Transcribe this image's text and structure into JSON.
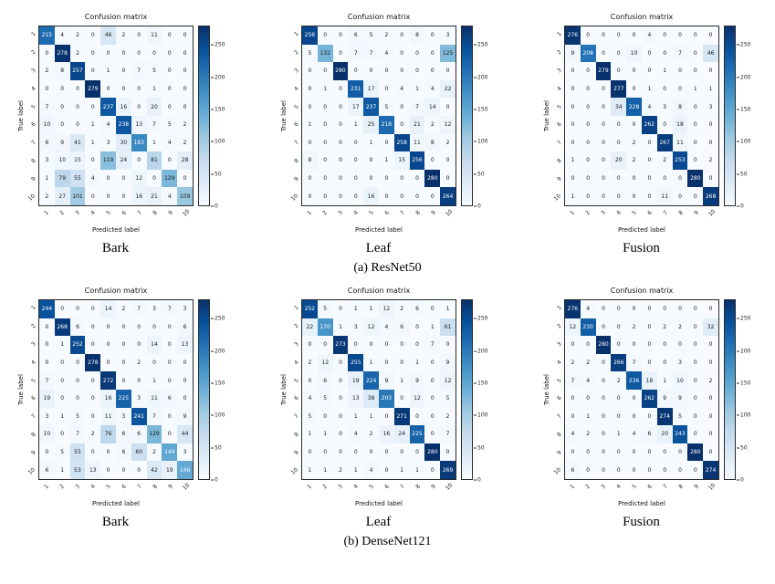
{
  "figure": {
    "rows": [
      {
        "caption": "(a) ResNet50",
        "panels": [
          {
            "label": "Bark"
          },
          {
            "label": "Leaf"
          },
          {
            "label": "Fusion"
          }
        ]
      },
      {
        "caption": "(b) DenseNet121",
        "panels": [
          {
            "label": "Bark"
          },
          {
            "label": "Leaf"
          },
          {
            "label": "Fusion"
          }
        ]
      }
    ]
  },
  "palette": {
    "cmap": "Blues",
    "cmap_low": "#f7fbff",
    "cmap_high": "#08306b",
    "spine": "#2a2a2a"
  },
  "chart_data": [
    {
      "type": "heatmap",
      "model": "ResNet50",
      "modality": "Bark",
      "title": "Confusion matrix",
      "xlabel": "Predicted label",
      "ylabel": "True label",
      "x_ticklabels": [
        "1",
        "2",
        "3",
        "4",
        "5",
        "6",
        "7",
        "8",
        "9",
        "10"
      ],
      "y_ticklabels": [
        "1",
        "2",
        "3",
        "4",
        "5",
        "6",
        "7",
        "8",
        "9",
        "10"
      ],
      "vmin": 0,
      "vmax": 280,
      "colorbar_ticks": [
        0,
        50,
        100,
        150,
        200,
        250
      ],
      "matrix": [
        [
          215,
          4,
          2,
          0,
          46,
          2,
          0,
          11,
          0,
          0
        ],
        [
          0,
          278,
          2,
          0,
          0,
          0,
          0,
          0,
          0,
          0
        ],
        [
          2,
          8,
          257,
          0,
          1,
          0,
          7,
          5,
          0,
          0
        ],
        [
          0,
          0,
          0,
          279,
          0,
          0,
          0,
          1,
          0,
          0
        ],
        [
          7,
          0,
          0,
          0,
          237,
          16,
          0,
          20,
          0,
          0
        ],
        [
          10,
          0,
          0,
          1,
          4,
          238,
          13,
          7,
          5,
          2
        ],
        [
          6,
          9,
          41,
          1,
          3,
          30,
          183,
          1,
          4,
          2
        ],
        [
          3,
          10,
          15,
          0,
          119,
          24,
          0,
          81,
          0,
          28
        ],
        [
          1,
          79,
          55,
          4,
          0,
          0,
          12,
          0,
          129,
          0
        ],
        [
          2,
          27,
          101,
          0,
          0,
          0,
          16,
          21,
          4,
          109
        ]
      ]
    },
    {
      "type": "heatmap",
      "model": "ResNet50",
      "modality": "Leaf",
      "title": "Confusion matrix",
      "xlabel": "Predicted label",
      "ylabel": "True label",
      "x_ticklabels": [
        "1",
        "2",
        "3",
        "4",
        "5",
        "6",
        "7",
        "8",
        "9",
        "10"
      ],
      "y_ticklabels": [
        "1",
        "2",
        "3",
        "4",
        "5",
        "6",
        "7",
        "8",
        "9",
        "10"
      ],
      "vmin": 0,
      "vmax": 280,
      "colorbar_ticks": [
        0,
        50,
        100,
        150,
        200,
        250
      ],
      "matrix": [
        [
          256,
          0,
          0,
          6,
          5,
          2,
          0,
          8,
          0,
          3
        ],
        [
          5,
          132,
          0,
          7,
          7,
          4,
          0,
          0,
          0,
          125
        ],
        [
          0,
          0,
          280,
          0,
          0,
          0,
          0,
          0,
          0,
          0
        ],
        [
          0,
          1,
          0,
          231,
          17,
          0,
          4,
          1,
          4,
          22
        ],
        [
          0,
          0,
          0,
          17,
          237,
          5,
          0,
          7,
          14,
          0
        ],
        [
          1,
          0,
          0,
          1,
          25,
          218,
          0,
          21,
          2,
          12
        ],
        [
          0,
          0,
          0,
          0,
          1,
          0,
          258,
          11,
          8,
          2
        ],
        [
          8,
          0,
          0,
          0,
          0,
          1,
          15,
          256,
          0,
          0
        ],
        [
          0,
          0,
          0,
          0,
          0,
          0,
          0,
          0,
          280,
          0
        ],
        [
          0,
          0,
          0,
          0,
          16,
          0,
          0,
          0,
          0,
          264
        ]
      ]
    },
    {
      "type": "heatmap",
      "model": "ResNet50",
      "modality": "Fusion",
      "title": "Confusion matrix",
      "xlabel": "Predicted label",
      "ylabel": "True label",
      "x_ticklabels": [
        "1",
        "2",
        "3",
        "4",
        "5",
        "6",
        "7",
        "8",
        "9",
        "10"
      ],
      "y_ticklabels": [
        "1",
        "2",
        "3",
        "4",
        "5",
        "6",
        "7",
        "8",
        "9",
        "10"
      ],
      "vmin": 0,
      "vmax": 280,
      "colorbar_ticks": [
        0,
        50,
        100,
        150,
        200,
        250
      ],
      "matrix": [
        [
          276,
          0,
          0,
          0,
          0,
          4,
          0,
          0,
          0,
          0
        ],
        [
          9,
          208,
          0,
          0,
          10,
          0,
          0,
          7,
          0,
          46
        ],
        [
          0,
          0,
          279,
          0,
          0,
          0,
          1,
          0,
          0,
          0
        ],
        [
          0,
          0,
          0,
          277,
          0,
          1,
          0,
          0,
          1,
          1
        ],
        [
          0,
          0,
          0,
          34,
          228,
          4,
          3,
          8,
          0,
          3
        ],
        [
          0,
          0,
          0,
          0,
          0,
          262,
          0,
          18,
          0,
          0
        ],
        [
          0,
          0,
          0,
          0,
          2,
          0,
          267,
          11,
          0,
          0
        ],
        [
          1,
          0,
          0,
          20,
          2,
          0,
          2,
          253,
          0,
          2
        ],
        [
          0,
          0,
          0,
          0,
          0,
          0,
          0,
          0,
          280,
          0
        ],
        [
          1,
          0,
          0,
          0,
          0,
          0,
          11,
          0,
          0,
          268
        ]
      ]
    },
    {
      "type": "heatmap",
      "model": "DenseNet121",
      "modality": "Bark",
      "title": "Confusion matrix",
      "xlabel": "Predicted label",
      "ylabel": "True label",
      "x_ticklabels": [
        "1",
        "2",
        "3",
        "4",
        "5",
        "6",
        "7",
        "8",
        "9",
        "10"
      ],
      "y_ticklabels": [
        "1",
        "2",
        "3",
        "4",
        "5",
        "6",
        "7",
        "8",
        "9",
        "10"
      ],
      "vmin": 0,
      "vmax": 280,
      "colorbar_ticks": [
        0,
        50,
        100,
        150,
        200,
        250
      ],
      "matrix": [
        [
          244,
          0,
          0,
          0,
          14,
          2,
          7,
          3,
          7,
          3
        ],
        [
          0,
          268,
          6,
          0,
          0,
          0,
          0,
          0,
          0,
          6
        ],
        [
          0,
          1,
          252,
          0,
          0,
          0,
          0,
          14,
          0,
          13
        ],
        [
          0,
          0,
          0,
          278,
          0,
          0,
          2,
          0,
          0,
          0
        ],
        [
          7,
          0,
          0,
          0,
          272,
          0,
          0,
          1,
          0,
          0
        ],
        [
          19,
          0,
          0,
          0,
          16,
          225,
          3,
          11,
          6,
          0
        ],
        [
          3,
          1,
          5,
          0,
          11,
          3,
          241,
          7,
          0,
          9
        ],
        [
          10,
          0,
          7,
          2,
          76,
          6,
          6,
          129,
          0,
          44
        ],
        [
          0,
          5,
          55,
          0,
          0,
          6,
          60,
          2,
          149,
          3
        ],
        [
          6,
          1,
          53,
          13,
          0,
          0,
          0,
          42,
          19,
          146
        ]
      ]
    },
    {
      "type": "heatmap",
      "model": "DenseNet121",
      "modality": "Leaf",
      "title": "Confusion matrix",
      "xlabel": "Predicted label",
      "ylabel": "True label",
      "x_ticklabels": [
        "1",
        "2",
        "3",
        "4",
        "5",
        "6",
        "7",
        "8",
        "9",
        "10"
      ],
      "y_ticklabels": [
        "1",
        "2",
        "3",
        "4",
        "5",
        "6",
        "7",
        "8",
        "9",
        "10"
      ],
      "vmin": 0,
      "vmax": 280,
      "colorbar_ticks": [
        0,
        50,
        100,
        150,
        200,
        250
      ],
      "matrix": [
        [
          252,
          5,
          0,
          1,
          1,
          12,
          2,
          6,
          0,
          1
        ],
        [
          22,
          170,
          1,
          3,
          12,
          4,
          6,
          0,
          1,
          61
        ],
        [
          0,
          0,
          273,
          0,
          0,
          0,
          0,
          0,
          7,
          0
        ],
        [
          2,
          12,
          0,
          255,
          1,
          0,
          0,
          1,
          0,
          9
        ],
        [
          0,
          6,
          0,
          19,
          224,
          9,
          1,
          9,
          0,
          12
        ],
        [
          4,
          5,
          0,
          13,
          38,
          203,
          0,
          12,
          0,
          5
        ],
        [
          5,
          0,
          0,
          1,
          1,
          0,
          271,
          0,
          0,
          2
        ],
        [
          1,
          1,
          0,
          4,
          2,
          16,
          24,
          225,
          0,
          7
        ],
        [
          0,
          0,
          0,
          0,
          0,
          0,
          0,
          0,
          280,
          0
        ],
        [
          1,
          1,
          2,
          1,
          4,
          0,
          1,
          1,
          0,
          269
        ]
      ]
    },
    {
      "type": "heatmap",
      "model": "DenseNet121",
      "modality": "Fusion",
      "title": "Confusion matrix",
      "xlabel": "Predicted label",
      "ylabel": "True label",
      "x_ticklabels": [
        "1",
        "2",
        "3",
        "4",
        "5",
        "6",
        "7",
        "8",
        "9",
        "10"
      ],
      "y_ticklabels": [
        "1",
        "2",
        "3",
        "4",
        "5",
        "6",
        "7",
        "8",
        "9",
        "10"
      ],
      "vmin": 0,
      "vmax": 280,
      "colorbar_ticks": [
        0,
        50,
        100,
        150,
        200,
        250
      ],
      "matrix": [
        [
          276,
          4,
          0,
          0,
          0,
          0,
          0,
          0,
          0,
          0
        ],
        [
          12,
          230,
          0,
          0,
          2,
          0,
          2,
          2,
          0,
          32
        ],
        [
          0,
          0,
          280,
          0,
          0,
          0,
          0,
          0,
          0,
          0
        ],
        [
          2,
          2,
          0,
          266,
          7,
          0,
          0,
          3,
          0,
          0
        ],
        [
          7,
          4,
          0,
          2,
          236,
          18,
          1,
          10,
          0,
          2
        ],
        [
          0,
          0,
          0,
          0,
          0,
          262,
          9,
          9,
          0,
          0
        ],
        [
          0,
          1,
          0,
          0,
          0,
          0,
          274,
          5,
          0,
          0
        ],
        [
          4,
          2,
          0,
          1,
          4,
          6,
          20,
          243,
          0,
          0
        ],
        [
          0,
          0,
          0,
          0,
          0,
          0,
          0,
          0,
          280,
          0
        ],
        [
          6,
          0,
          0,
          0,
          0,
          0,
          0,
          0,
          0,
          274
        ]
      ]
    }
  ]
}
